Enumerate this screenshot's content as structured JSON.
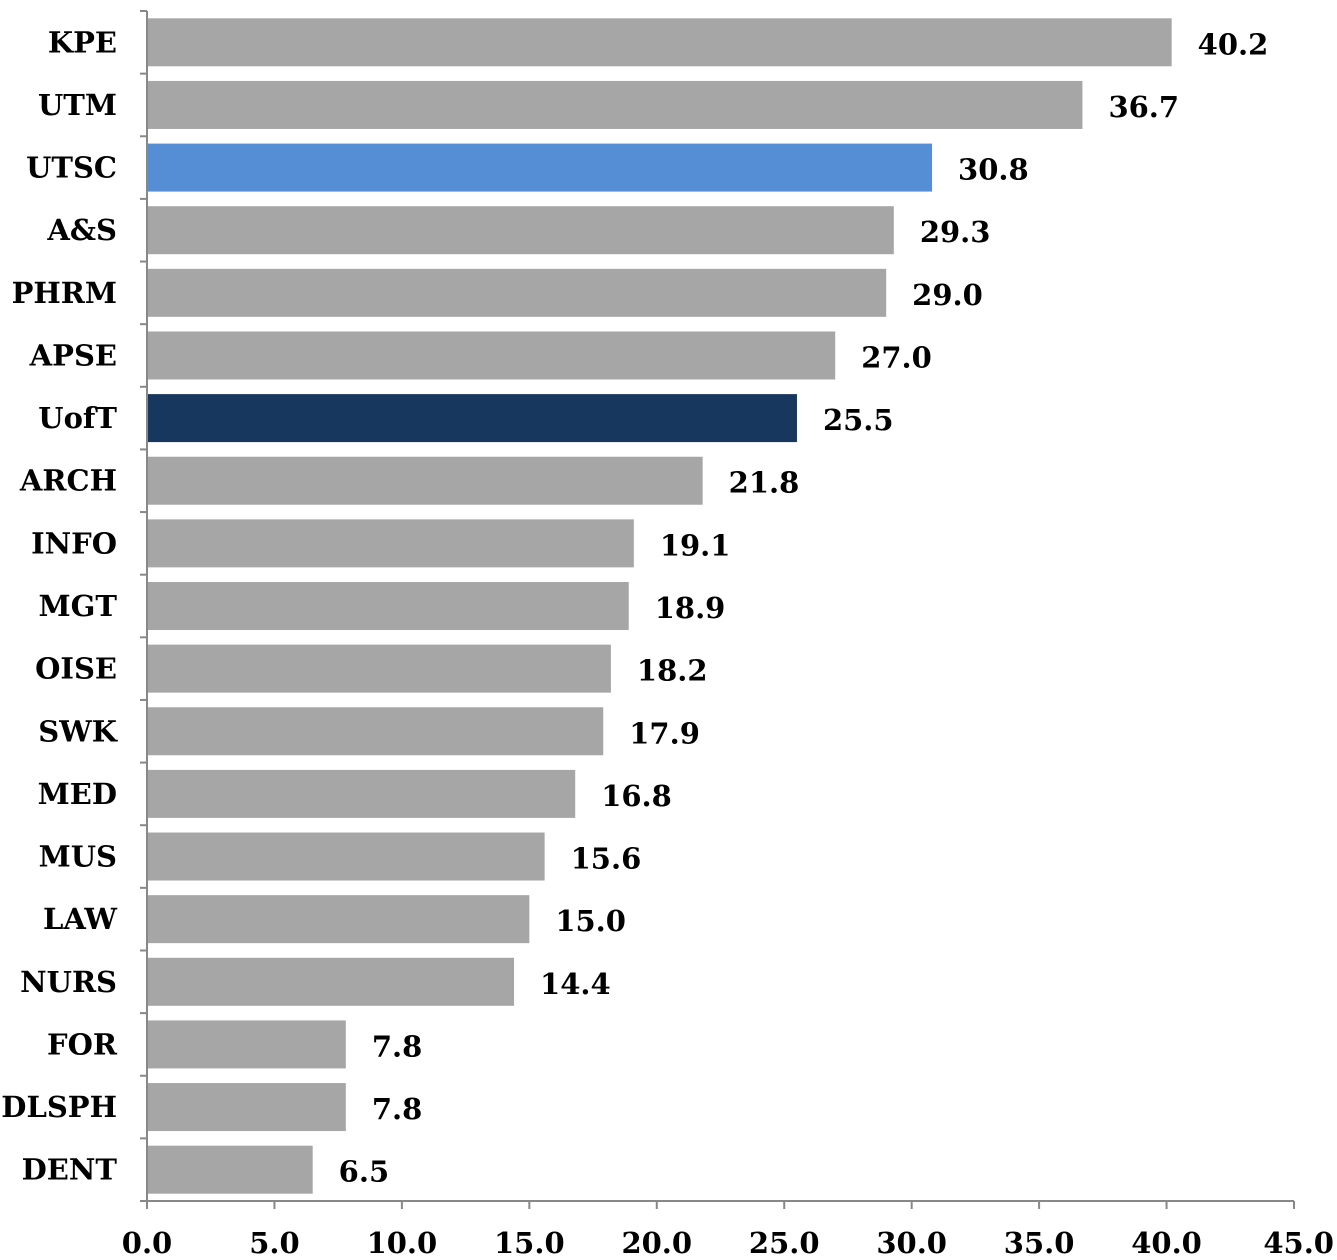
{
  "chart_data": {
    "type": "bar",
    "orientation": "horizontal",
    "categories": [
      "KPE",
      "UTM",
      "UTSC",
      "A&S",
      "PHRM",
      "APSE",
      "UofT",
      "ARCH",
      "INFO",
      "MGT",
      "OISE",
      "SWK",
      "MED",
      "MUS",
      "LAW",
      "NURS",
      "FOR",
      "DLSPH",
      "DENT"
    ],
    "values": [
      40.2,
      36.7,
      30.8,
      29.3,
      29.0,
      27.0,
      25.5,
      21.8,
      19.1,
      18.9,
      18.2,
      17.9,
      16.8,
      15.6,
      15.0,
      14.4,
      7.8,
      7.8,
      6.5
    ],
    "value_labels": [
      "40.2",
      "36.7",
      "30.8",
      "29.3",
      "29.0",
      "27.0",
      "25.5",
      "21.8",
      "19.1",
      "18.9",
      "18.2",
      "17.9",
      "16.8",
      "15.6",
      "15.0",
      "14.4",
      "7.8",
      "7.8",
      "6.5"
    ],
    "bar_colors": [
      "#a6a6a6",
      "#a6a6a6",
      "#558ed5",
      "#a6a6a6",
      "#a6a6a6",
      "#a6a6a6",
      "#17375e",
      "#a6a6a6",
      "#a6a6a6",
      "#a6a6a6",
      "#a6a6a6",
      "#a6a6a6",
      "#a6a6a6",
      "#a6a6a6",
      "#a6a6a6",
      "#a6a6a6",
      "#a6a6a6",
      "#a6a6a6",
      "#a6a6a6"
    ],
    "title": "",
    "xlabel": "",
    "ylabel": "",
    "xlim": [
      0,
      45
    ],
    "x_ticks": [
      0,
      5,
      10,
      15,
      20,
      25,
      30,
      35,
      40,
      45
    ],
    "x_tick_labels": [
      "0.0",
      "5.0",
      "10.0",
      "15.0",
      "20.0",
      "25.0",
      "30.0",
      "35.0",
      "40.0",
      "45.0"
    ],
    "grid": false,
    "legend": "none"
  }
}
